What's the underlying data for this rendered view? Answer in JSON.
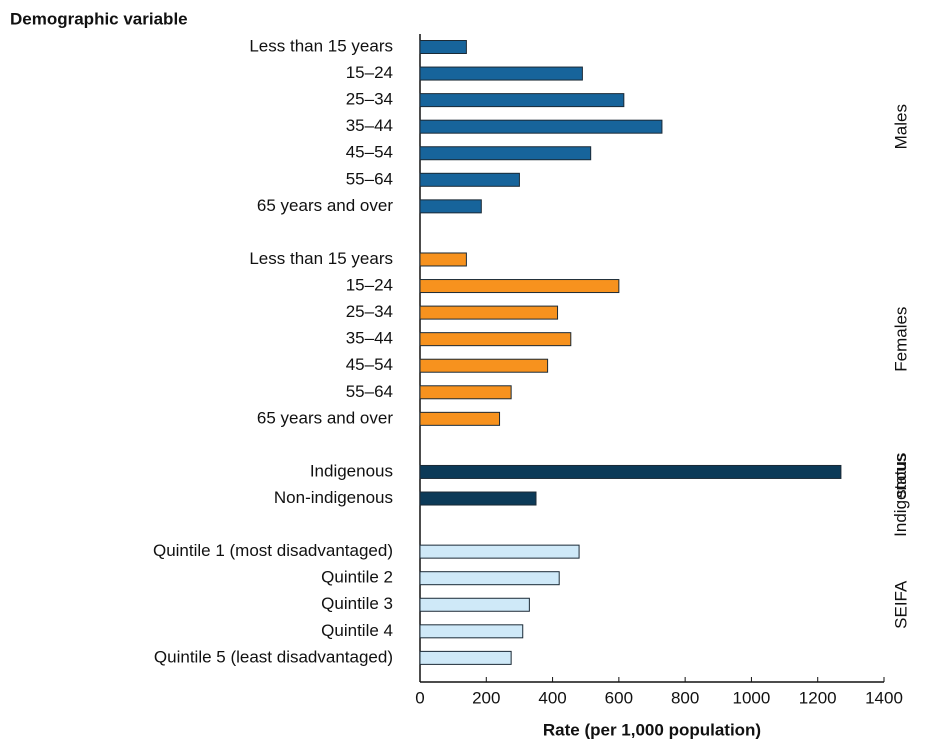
{
  "chart_data": {
    "type": "bar",
    "orientation": "horizontal",
    "y_label": "Demographic variable",
    "x_label": "Rate (per 1,000 population)",
    "xlim": [
      0,
      1400
    ],
    "xticks": [
      0,
      200,
      400,
      600,
      800,
      1000,
      1200,
      1400
    ],
    "groups": [
      {
        "name": "Males",
        "color": "#17649b",
        "categories": [
          "Less than 15 years",
          "15–24",
          "25–34",
          "35–44",
          "45–54",
          "55–64",
          "65 years and over"
        ],
        "values": [
          140,
          490,
          615,
          730,
          515,
          300,
          185
        ]
      },
      {
        "name": "Females",
        "color": "#f7921e",
        "categories": [
          "Less than 15 years",
          "15–24",
          "25–34",
          "35–44",
          "45–54",
          "55–64",
          "65 years and over"
        ],
        "values": [
          140,
          600,
          415,
          455,
          385,
          275,
          240
        ]
      },
      {
        "name": "Indigenous status",
        "color": "#0c3a58",
        "categories": [
          "Indigenous",
          "Non-indigenous"
        ],
        "values": [
          1270,
          350
        ]
      },
      {
        "name": "SEIFA",
        "color": "#cfe9f8",
        "categories": [
          "Quintile 1 (most disadvantaged)",
          "Quintile 2",
          "Quintile 3",
          "Quintile 4",
          "Quintile 5 (least disadvantaged)"
        ],
        "values": [
          480,
          420,
          330,
          310,
          275
        ]
      }
    ]
  }
}
